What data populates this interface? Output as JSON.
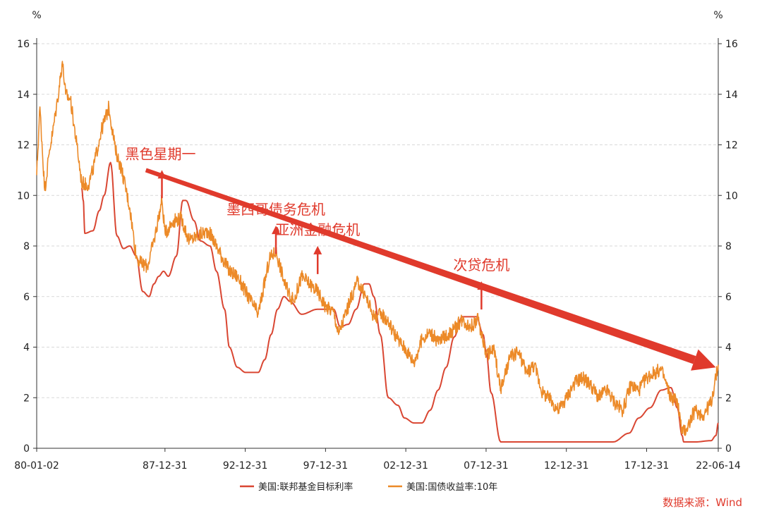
{
  "chart_data": {
    "type": "line",
    "y_unit_left": "%",
    "y_unit_right": "%",
    "ylim": [
      0,
      16
    ],
    "y_ticks": [
      0,
      2,
      4,
      6,
      8,
      10,
      12,
      14,
      16
    ],
    "x_tick_labels": [
      "80-01-02",
      "87-12-31",
      "92-12-31",
      "97-12-31",
      "02-12-31",
      "07-12-31",
      "12-12-31",
      "17-12-31",
      "22-06-14"
    ],
    "x_tick_years": [
      1980.0,
      1987.99,
      1992.99,
      1997.99,
      2002.99,
      2007.99,
      2012.99,
      2017.99,
      2022.45
    ],
    "grid": true,
    "legend_position": "bottom",
    "series": [
      {
        "name": "美国:联邦基金目标利率",
        "color": "#d94632",
        "x": [
          1982.8,
          1982.9,
          1983.0,
          1983.5,
          1983.9,
          1984.2,
          1984.6,
          1985.0,
          1985.4,
          1985.8,
          1986.2,
          1986.6,
          1987.0,
          1987.3,
          1987.6,
          1987.9,
          1988.2,
          1988.7,
          1989.1,
          1989.3,
          1989.8,
          1990.2,
          1990.8,
          1991.2,
          1991.7,
          1992.0,
          1992.5,
          1993.0,
          1993.8,
          1994.2,
          1994.6,
          1995.0,
          1995.4,
          1995.8,
          1996.5,
          1997.5,
          1998.5,
          1998.9,
          1999.4,
          1999.9,
          2000.4,
          2000.7,
          2001.0,
          2001.4,
          2001.9,
          2002.5,
          2002.9,
          2003.5,
          2004.0,
          2004.5,
          2005.0,
          2005.5,
          2006.0,
          2006.5,
          2007.4,
          2007.8,
          2008.0,
          2008.3,
          2008.9,
          2010.0,
          2012.0,
          2014.0,
          2015.9,
          2016.9,
          2017.5,
          2018.2,
          2018.9,
          2019.5,
          2019.9,
          2020.2,
          2020.3,
          2021.0,
          2022.0,
          2022.3,
          2022.45
        ],
        "values": [
          10.3,
          9.8,
          8.5,
          8.6,
          9.4,
          10.0,
          11.3,
          8.4,
          7.9,
          8.0,
          7.6,
          6.2,
          6.0,
          6.5,
          6.8,
          7.0,
          6.8,
          7.6,
          9.8,
          9.8,
          9.0,
          8.2,
          8.0,
          7.0,
          5.5,
          4.0,
          3.2,
          3.0,
          3.0,
          3.5,
          4.5,
          5.5,
          6.0,
          5.8,
          5.3,
          5.5,
          5.5,
          4.8,
          4.9,
          5.5,
          6.5,
          6.5,
          6.0,
          4.5,
          2.0,
          1.7,
          1.2,
          1.0,
          1.0,
          1.5,
          2.3,
          3.2,
          4.4,
          5.2,
          5.2,
          4.5,
          3.8,
          2.2,
          0.25,
          0.25,
          0.25,
          0.25,
          0.25,
          0.6,
          1.2,
          1.6,
          2.3,
          2.4,
          1.6,
          0.5,
          0.25,
          0.25,
          0.3,
          0.5,
          1.0
        ]
      },
      {
        "name": "美国:国债收益率:10年",
        "color": "#ec8a28",
        "x": [
          1980.0,
          1980.2,
          1980.5,
          1980.8,
          1981.0,
          1981.3,
          1981.6,
          1981.8,
          1982.1,
          1982.5,
          1982.8,
          1983.2,
          1983.5,
          1984.0,
          1984.5,
          1984.9,
          1985.3,
          1985.8,
          1986.2,
          1986.5,
          1986.9,
          1987.3,
          1987.8,
          1988.0,
          1988.5,
          1989.0,
          1989.5,
          1990.0,
          1990.7,
          1991.2,
          1992.0,
          1992.5,
          1993.0,
          1993.8,
          1994.5,
          1994.9,
          1995.5,
          1996.0,
          1996.5,
          1997.0,
          1997.5,
          1998.0,
          1998.5,
          1998.8,
          1999.5,
          2000.0,
          2000.5,
          2001.0,
          2001.5,
          2001.9,
          2002.5,
          2003.0,
          2003.5,
          2004.0,
          2004.5,
          2005.0,
          2006.0,
          2006.5,
          2007.0,
          2007.5,
          2008.0,
          2008.5,
          2008.9,
          2009.5,
          2010.0,
          2010.5,
          2011.0,
          2011.5,
          2012.0,
          2012.5,
          2013.0,
          2013.5,
          2014.0,
          2014.5,
          2015.0,
          2015.5,
          2016.0,
          2016.5,
          2017.0,
          2017.5,
          2018.0,
          2018.5,
          2018.9,
          2019.5,
          2019.9,
          2020.2,
          2020.5,
          2021.0,
          2021.5,
          2022.0,
          2022.3,
          2022.45
        ],
        "values": [
          10.8,
          13.5,
          10.2,
          11.8,
          12.5,
          13.8,
          15.3,
          14.0,
          13.8,
          12.0,
          10.5,
          10.4,
          11.0,
          12.5,
          13.5,
          11.8,
          11.0,
          9.5,
          7.6,
          7.3,
          7.2,
          8.2,
          9.8,
          8.5,
          9.0,
          9.1,
          8.2,
          8.4,
          8.6,
          8.0,
          7.0,
          6.8,
          6.2,
          5.3,
          7.5,
          7.8,
          6.4,
          5.8,
          6.8,
          6.5,
          6.2,
          5.6,
          5.4,
          4.5,
          5.8,
          6.6,
          6.0,
          5.2,
          5.3,
          5.0,
          4.3,
          3.9,
          3.4,
          4.3,
          4.6,
          4.2,
          4.7,
          5.1,
          4.8,
          5.1,
          3.7,
          3.9,
          2.3,
          3.6,
          3.8,
          3.0,
          3.3,
          2.2,
          1.9,
          1.5,
          2.0,
          2.6,
          2.8,
          2.5,
          2.0,
          2.3,
          1.8,
          1.5,
          2.5,
          2.3,
          2.8,
          3.0,
          3.1,
          2.0,
          1.9,
          0.6,
          0.8,
          1.5,
          1.3,
          1.8,
          2.8,
          3.3
        ]
      }
    ],
    "annotations": [
      {
        "text": "黑色星期一",
        "year": 1987.8,
        "value": 10.0
      },
      {
        "text": "墨西哥债务危机",
        "year": 1994.9,
        "value": 7.8
      },
      {
        "text": "亚洲金融危机",
        "year": 1997.5,
        "value": 7.0
      },
      {
        "text": "次贷危机",
        "year": 2007.7,
        "value": 5.6
      }
    ],
    "trend_arrow": {
      "color": "#e03a2c",
      "from": {
        "year": 1986.8,
        "value": 11.0
      },
      "to": {
        "year": 2022.3,
        "value": 3.2
      }
    },
    "source": "数据来源：Wind"
  }
}
